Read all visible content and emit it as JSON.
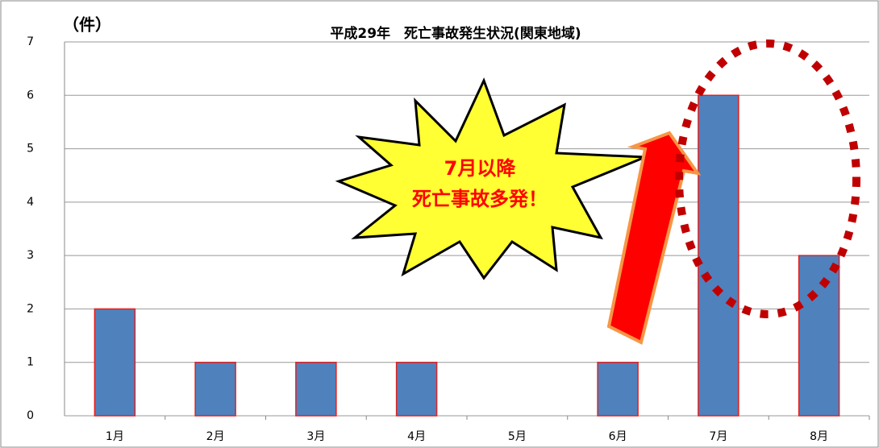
{
  "chart_data": {
    "type": "bar",
    "title": "平成29年　死亡事故発生状況(関東地域)",
    "y_label": "（件）",
    "categories": [
      "1月",
      "2月",
      "3月",
      "4月",
      "5月",
      "6月",
      "7月",
      "8月"
    ],
    "values": [
      2,
      1,
      1,
      1,
      0,
      1,
      6,
      3
    ],
    "color": "#4f81bd",
    "ylim": [
      0,
      7
    ],
    "yticks": [
      0,
      1,
      2,
      3,
      4,
      5,
      6,
      7
    ],
    "grid": true,
    "annotations": [
      "7月以降",
      "死亡事故多発！"
    ]
  }
}
